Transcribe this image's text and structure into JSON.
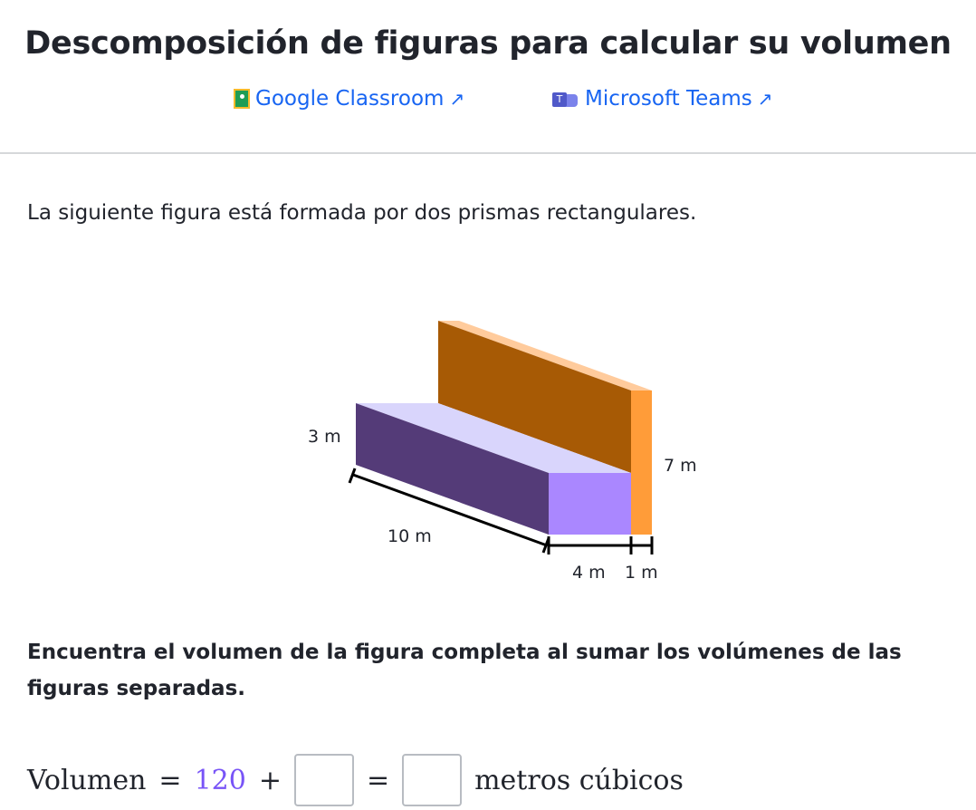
{
  "title": "Descomposición de figuras para calcular su volumen",
  "links": [
    {
      "label": "Google Classroom",
      "icon": "google-classroom-icon"
    },
    {
      "label": "Microsoft Teams",
      "icon": "microsoft-teams-icon"
    }
  ],
  "external_icon": "↗",
  "intro": "La siguiente figura está formada por dos prismas rectangulares.",
  "figure": {
    "labels": {
      "height_small": "3 m",
      "height_large": "7 m",
      "length": "10 m",
      "width_small": "4 m",
      "width_large": "1 m"
    },
    "colors": {
      "purple_front": "#543b78",
      "purple_top": "#d9d5fc",
      "purple_side": "#aa87ff",
      "brown": "#a75a05",
      "orange": "#ff9c39",
      "orange_top": "#ffcb9c"
    }
  },
  "question": "Encuentra el volumen de la figura completa al sumar los volúmenes de las figuras separadas.",
  "equation": {
    "label": "Volumen",
    "equals": "=",
    "given": "120",
    "plus": "+",
    "equals2": "=",
    "unit": "metros cúbicos"
  }
}
